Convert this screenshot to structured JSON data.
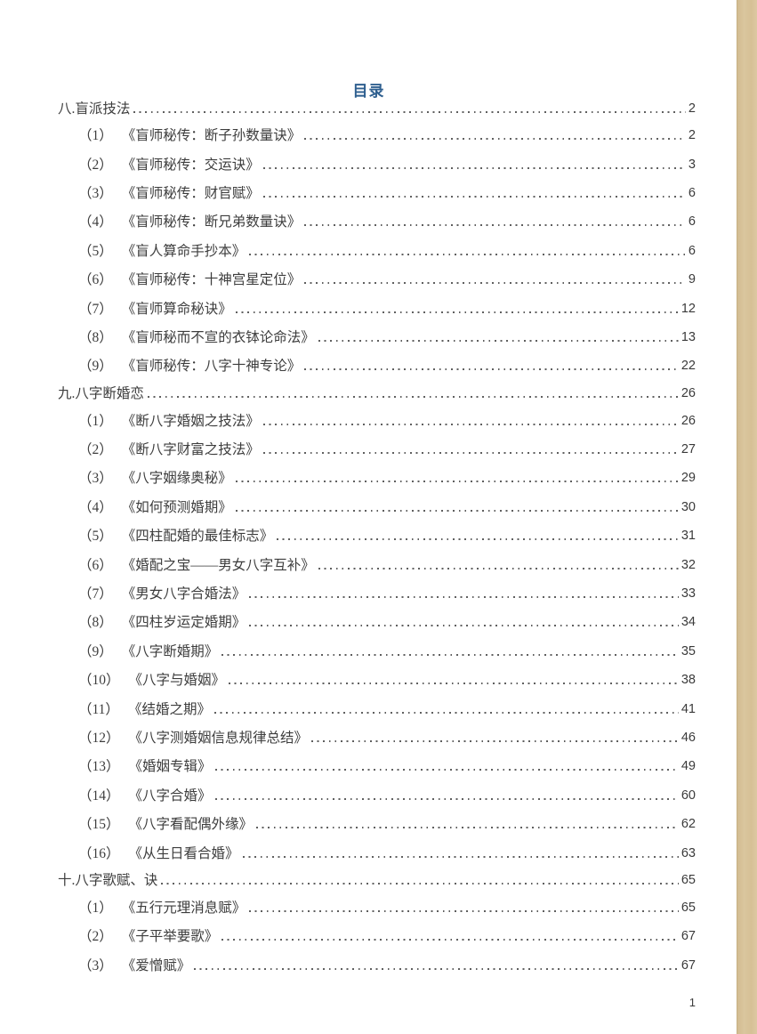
{
  "page": {
    "title": "目录",
    "footer_page_number": "1"
  },
  "colors": {
    "title_blue": "#2e5f8f",
    "body_text": "#3d3d3d",
    "page_edge_tan": "#d9c49c"
  },
  "toc": {
    "sections": [
      {
        "label": "八.盲派技法",
        "page": "2",
        "items": [
          {
            "num": "（1）",
            "title": "《盲师秘传：断子孙数量诀》",
            "page": "2"
          },
          {
            "num": "（2）",
            "title": "《盲师秘传：交运诀》",
            "page": "3"
          },
          {
            "num": "（3）",
            "title": "《盲师秘传：财官赋》",
            "page": "6"
          },
          {
            "num": "（4）",
            "title": "《盲师秘传：断兄弟数量诀》",
            "page": "6"
          },
          {
            "num": "（5）",
            "title": "《盲人算命手抄本》",
            "page": "6"
          },
          {
            "num": "（6）",
            "title": "《盲师秘传：十神宫星定位》",
            "page": "9"
          },
          {
            "num": "（7）",
            "title": "《盲师算命秘诀》",
            "page": "12"
          },
          {
            "num": "（8）",
            "title": "《盲师秘而不宣的衣钵论命法》",
            "page": "13"
          },
          {
            "num": "（9）",
            "title": "《盲师秘传：八字十神专论》",
            "page": "22"
          }
        ]
      },
      {
        "label": "九.八字断婚恋",
        "page": "26",
        "items": [
          {
            "num": "（1）",
            "title": "《断八字婚姻之技法》",
            "page": "26"
          },
          {
            "num": "（2）",
            "title": "《断八字财富之技法》",
            "page": "27"
          },
          {
            "num": "（3）",
            "title": "《八字姻缘奥秘》",
            "page": "29"
          },
          {
            "num": "（4）",
            "title": "《如何预测婚期》",
            "page": "30"
          },
          {
            "num": "（5）",
            "title": "《四柱配婚的最佳标志》",
            "page": "31"
          },
          {
            "num": "（6）",
            "title": "《婚配之宝——男女八字互补》",
            "page": "32"
          },
          {
            "num": "（7）",
            "title": "《男女八字合婚法》",
            "page": "33"
          },
          {
            "num": "（8）",
            "title": "《四柱岁运定婚期》",
            "page": "34"
          },
          {
            "num": "（9）",
            "title": "《八字断婚期》",
            "page": "35"
          },
          {
            "num": "（10）",
            "title": "《八字与婚姻》",
            "page": "38"
          },
          {
            "num": "（11）",
            "title": "《结婚之期》",
            "page": "41"
          },
          {
            "num": "（12）",
            "title": "《八字测婚姻信息规律总结》",
            "page": "46"
          },
          {
            "num": "（13）",
            "title": "《婚姻专辑》",
            "page": "49"
          },
          {
            "num": "（14）",
            "title": "《八字合婚》",
            "page": "60"
          },
          {
            "num": "（15）",
            "title": "《八字看配偶外缘》",
            "page": "62"
          },
          {
            "num": "（16）",
            "title": "《从生日看合婚》",
            "page": "63"
          }
        ]
      },
      {
        "label": "十.八字歌赋、诀",
        "page": "65",
        "items": [
          {
            "num": "（1）",
            "title": "《五行元理消息赋》",
            "page": "65"
          },
          {
            "num": "（2）",
            "title": "《子平举要歌》",
            "page": "67"
          },
          {
            "num": "（3）",
            "title": "《爱憎赋》",
            "page": "67"
          }
        ]
      }
    ]
  }
}
